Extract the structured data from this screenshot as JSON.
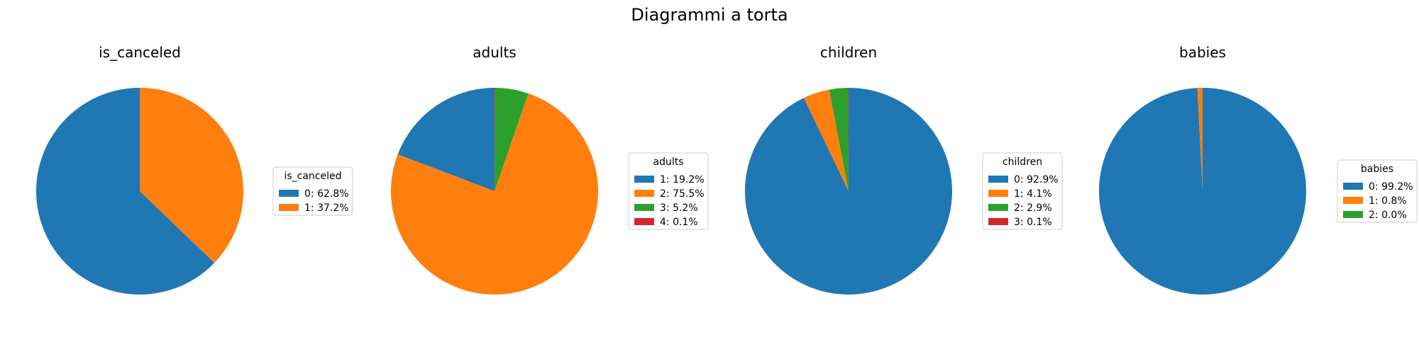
{
  "figure": {
    "title": "Diagrammi a torta"
  },
  "colors": [
    "#1f77b4",
    "#ff7f0e",
    "#2ca02c",
    "#d62728"
  ],
  "chart_data": [
    {
      "type": "pie",
      "title": "is_canceled",
      "legend_title": "is_canceled",
      "start_angle": 90,
      "direction": "counterclockwise",
      "slices": [
        {
          "label": "0: 62.8%",
          "value": 62.8
        },
        {
          "label": "1: 37.2%",
          "value": 37.2
        }
      ]
    },
    {
      "type": "pie",
      "title": "adults",
      "legend_title": "adults",
      "start_angle": 90,
      "direction": "counterclockwise",
      "slices": [
        {
          "label": "1: 19.2%",
          "value": 19.2
        },
        {
          "label": "2: 75.5%",
          "value": 75.5
        },
        {
          "label": "3: 5.2%",
          "value": 5.2
        },
        {
          "label": "4: 0.1%",
          "value": 0.1
        }
      ]
    },
    {
      "type": "pie",
      "title": "children",
      "legend_title": "children",
      "start_angle": 90,
      "direction": "clockwise",
      "slices": [
        {
          "label": "0: 92.9%",
          "value": 92.9
        },
        {
          "label": "1: 4.1%",
          "value": 4.1
        },
        {
          "label": "2: 2.9%",
          "value": 2.9
        },
        {
          "label": "3: 0.1%",
          "value": 0.1
        }
      ]
    },
    {
      "type": "pie",
      "title": "babies",
      "legend_title": "babies",
      "start_angle": 90,
      "direction": "clockwise",
      "slices": [
        {
          "label": "0: 99.2%",
          "value": 99.2
        },
        {
          "label": "1: 0.8%",
          "value": 0.8
        },
        {
          "label": "2: 0.0%",
          "value": 0.0
        }
      ]
    }
  ]
}
